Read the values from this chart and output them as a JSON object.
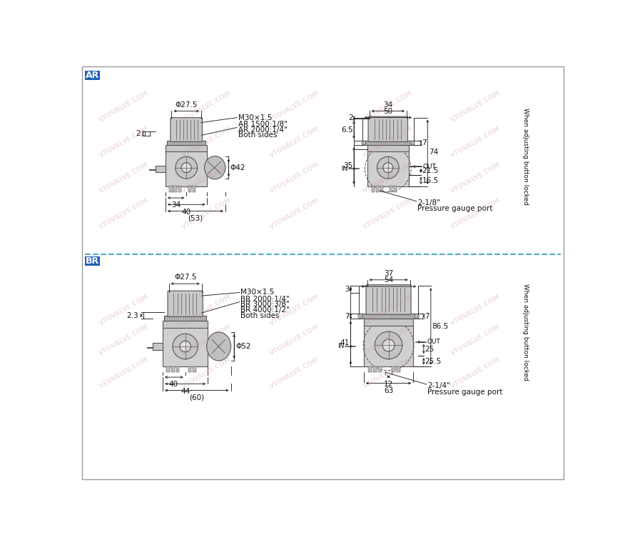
{
  "bg_color": "#ffffff",
  "component_fill": "#d8d8d8",
  "component_edge": "#555555",
  "dim_color": "#111111",
  "ar_bg": "#2060b0",
  "br_bg": "#2060b0",
  "divider_color": "#55aacc",
  "ar_label": "AR",
  "br_label": "BR",
  "ar_left": {
    "phi": "Φ27.5",
    "thread": "M30×1.5",
    "port1": "AR 1500:1/8\"",
    "port2": "AR 2000:1/4\"",
    "both": "Both sides",
    "dim_40": "40",
    "dim_34": "34",
    "dim_53": "(53)",
    "dim_42": "Φ42",
    "dim_2": "2"
  },
  "ar_right": {
    "dim_50": "50",
    "dim_34": "34",
    "dim_2": "2",
    "dim_6p5": "6.5",
    "dim_35": "35",
    "dim_7": "7",
    "dim_21p5": "21.5",
    "dim_16p5": "16.5",
    "dim_74": "74",
    "label_in": "IN",
    "label_out": "OUT",
    "side_label": "When adjusting button locked",
    "gauge_port": "2-1/8\"",
    "gauge_label": "Pressure gauge port"
  },
  "br_left": {
    "phi": "Φ27.5",
    "thread": "M30×1.5",
    "port1": "BR 2000:1/4\"",
    "port2": "BR 3000:3/8\"",
    "port3": "BR 4000:1/2\"",
    "both": "Both sides",
    "dim_40": "40",
    "dim_44": "44",
    "dim_60": "(60)",
    "dim_52": "Φ52",
    "dim_2p3": "2.3"
  },
  "br_right": {
    "dim_54": "54",
    "dim_37": "37",
    "dim_3": "3",
    "dim_7a": "7",
    "dim_7b": "7",
    "dim_41": "41",
    "dim_12": "12",
    "dim_63": "63",
    "dim_25": "25",
    "dim_25p5": "25.5",
    "dim_86p5": "86.5",
    "label_in": "IN",
    "label_out": "OUT",
    "side_label": "When adjusting button locked",
    "gauge_port": "2-1/4\"",
    "gauge_label": "Pressure gauge port"
  }
}
